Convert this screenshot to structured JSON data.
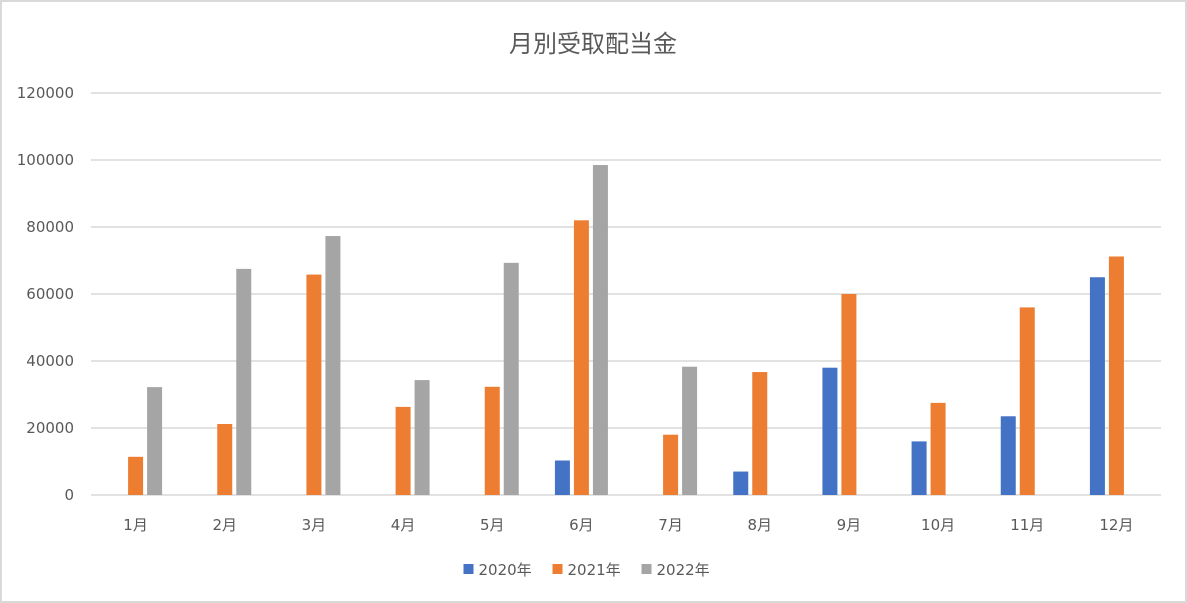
{
  "chart_data": {
    "type": "bar",
    "title": "月別受取配当金",
    "xlabel": "",
    "ylabel": "",
    "categories": [
      "1月",
      "2月",
      "3月",
      "4月",
      "5月",
      "6月",
      "7月",
      "8月",
      "9月",
      "10月",
      "11月",
      "12月"
    ],
    "ylim": [
      0,
      120000
    ],
    "yticks": [
      0,
      20000,
      40000,
      60000,
      80000,
      100000,
      120000
    ],
    "ytick_labels": [
      "0",
      "20000",
      "40000",
      "60000",
      "80000",
      "100000",
      "120000"
    ],
    "grid": true,
    "legend_position": "bottom",
    "series": [
      {
        "name": "2020年",
        "color": "#4472c4",
        "values": [
          0,
          0,
          0,
          0,
          0,
          10300,
          0,
          7000,
          38000,
          16000,
          23500,
          65000
        ]
      },
      {
        "name": "2021年",
        "color": "#ed7d31",
        "values": [
          11400,
          21200,
          65800,
          26300,
          32300,
          82000,
          18000,
          36700,
          60000,
          27500,
          56000,
          71200
        ]
      },
      {
        "name": "2022年",
        "color": "#a5a5a5",
        "values": [
          32200,
          67500,
          77300,
          34300,
          69300,
          98500,
          38300,
          0,
          0,
          0,
          0,
          0
        ]
      }
    ]
  },
  "colors": {
    "gridline": "#d9d9d9",
    "axis_text": "#595959",
    "border": "#d9d9d9"
  }
}
